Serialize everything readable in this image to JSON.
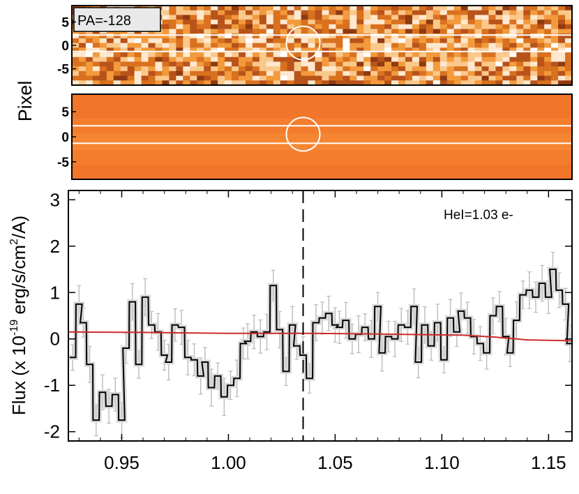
{
  "chart_data": [
    {
      "type": "heatmap",
      "name": "2D spectrum (data)",
      "ylabel": "Pixel",
      "yticks": [
        5,
        0,
        -5
      ],
      "ylim": [
        -8.5,
        8.5
      ],
      "annotation": "PA=-128",
      "extraction_lines_y": [
        2.2,
        -1.3
      ],
      "aperture_circle": {
        "x": 1.035,
        "y": 0.5
      },
      "colormap": [
        "#8f3a10",
        "#b8531a",
        "#d9711f",
        "#f29a3c",
        "#fbc88c",
        "#ffe8cf",
        "#ffffff"
      ]
    },
    {
      "type": "heatmap",
      "name": "2D contamination model",
      "ylabel": "Pixel",
      "yticks": [
        5,
        0,
        -5
      ],
      "ylim": [
        -8.5,
        8.5
      ],
      "extraction_lines_y": [
        2.2,
        -1.3
      ],
      "aperture_circle": {
        "x": 1.035,
        "y": 0.5
      },
      "bands": [
        {
          "ymin": -8.5,
          "ymax": -5.5,
          "color": "#f2762a"
        },
        {
          "ymin": -5.5,
          "ymax": -2.5,
          "color": "#f47d2d"
        },
        {
          "ymin": -2.5,
          "ymax": 0.5,
          "color": "#f68531"
        },
        {
          "ymin": 0.5,
          "ymax": 3.5,
          "color": "#f47d2d"
        },
        {
          "ymin": 3.5,
          "ymax": 8.5,
          "color": "#f2762a"
        }
      ]
    },
    {
      "type": "line",
      "name": "1D spectrum",
      "ylabel": "Flux (x 10-19 erg/s/cm2/A)",
      "ylabel_parts": {
        "base": "Flux (x 10",
        "exp1": "-19",
        "mid": " erg/s/cm",
        "exp2": "2",
        "end": "/A)"
      },
      "xlim": [
        0.925,
        1.161
      ],
      "ylim": [
        -2.2,
        3.2
      ],
      "xticks": [
        0.95,
        1.0,
        1.05,
        1.1,
        1.15
      ],
      "xtick_labels": [
        "0.95",
        "1.00",
        "1.05",
        "1.10",
        "1.15"
      ],
      "yticks": [
        3,
        2,
        1,
        0,
        -1,
        -2
      ],
      "ytick_labels": [
        "3",
        "2",
        "1",
        "0",
        "-1",
        "-2"
      ],
      "annotation": "HeI=1.03 e-",
      "line_marker_x": 1.035,
      "step_bin_width": 0.00285,
      "series": [
        {
          "name": "flux",
          "style": "step",
          "color": "#000000",
          "x": [
            0.927,
            0.93,
            0.932,
            0.935,
            0.938,
            0.941,
            0.944,
            0.947,
            0.95,
            0.952,
            0.955,
            0.958,
            0.961,
            0.964,
            0.967,
            0.97,
            0.972,
            0.975,
            0.978,
            0.981,
            0.984,
            0.987,
            0.989,
            0.992,
            0.995,
            0.998,
            1.001,
            1.004,
            1.007,
            1.009,
            1.012,
            1.015,
            1.018,
            1.021,
            1.024,
            1.027,
            1.03,
            1.032,
            1.035,
            1.038,
            1.041,
            1.044,
            1.047,
            1.05,
            1.052,
            1.055,
            1.058,
            1.061,
            1.064,
            1.067,
            1.07,
            1.072,
            1.075,
            1.078,
            1.081,
            1.084,
            1.087,
            1.089,
            1.092,
            1.095,
            1.098,
            1.101,
            1.104,
            1.107,
            1.109,
            1.112,
            1.115,
            1.118,
            1.121,
            1.124,
            1.127,
            1.13,
            1.132,
            1.135,
            1.138,
            1.141,
            1.144,
            1.147,
            1.15,
            1.152,
            1.155,
            1.158,
            1.16
          ],
          "values": [
            -0.4,
            0.75,
            0.35,
            -0.55,
            -1.75,
            -1.15,
            -1.45,
            -1.2,
            -1.75,
            -0.2,
            0.8,
            -0.55,
            0.9,
            0.3,
            0.15,
            -0.35,
            -0.5,
            0.3,
            0.25,
            -0.4,
            -0.45,
            -0.8,
            -0.5,
            -1.05,
            -0.8,
            -1.25,
            -1.0,
            -0.85,
            -0.1,
            -0.05,
            0.15,
            0.05,
            0.15,
            1.15,
            0.2,
            -0.7,
            0.3,
            -0.15,
            -0.35,
            -0.85,
            0.35,
            0.45,
            0.55,
            0.3,
            0.25,
            0.4,
            0.0,
            0.1,
            0.25,
            0.0,
            0.7,
            -0.3,
            0.05,
            0.0,
            0.3,
            0.25,
            0.7,
            -0.5,
            0.3,
            -0.15,
            0.35,
            -0.45,
            0.45,
            0.15,
            0.6,
            0.45,
            0.05,
            -0.1,
            -0.3,
            0.5,
            0.7,
            0.05,
            -0.3,
            0.4,
            0.95,
            1.05,
            0.9,
            1.2,
            0.9,
            1.5,
            1.05,
            0.75,
            -0.1
          ]
        },
        {
          "name": "contamination model",
          "style": "line",
          "color": "#cc2b2b",
          "x": [
            0.925,
            0.96,
            1.0,
            1.04,
            1.08,
            1.11,
            1.125,
            1.14,
            1.15,
            1.161
          ],
          "values": [
            0.15,
            0.14,
            0.12,
            0.12,
            0.1,
            0.08,
            0.04,
            -0.02,
            -0.03,
            -0.04
          ]
        }
      ],
      "error_bar_color": "#bbbbbb",
      "outline_color": "#d9d9d9"
    }
  ]
}
